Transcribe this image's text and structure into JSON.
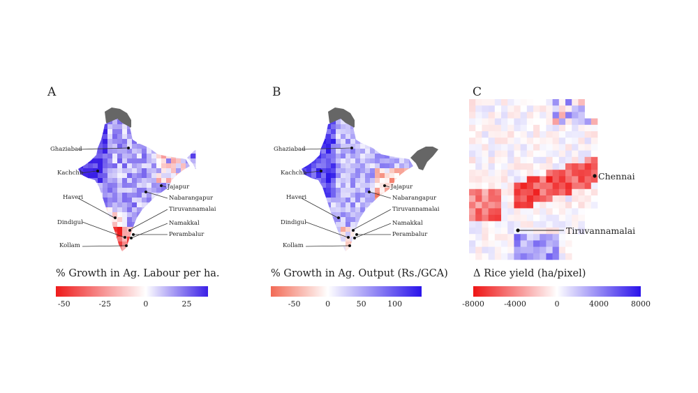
{
  "panels": [
    {
      "letter": "A",
      "colorbar": {
        "title": "% Growth in Ag. Labour per ha.",
        "ticks": [
          "-50",
          "-25",
          "0",
          "25"
        ],
        "tick_values": [
          -50,
          -25,
          0,
          25
        ],
        "range": [
          -55,
          38
        ],
        "colors": [
          "#ee1b1b",
          "#ffffff",
          "#3a1fe6"
        ]
      },
      "districts": [
        "Ghaziabad",
        "Kachchh",
        "Haveri",
        "Dindigul",
        "Kollam",
        "Jajapur",
        "Nabarangapur",
        "Tiruvannamalai",
        "Namakkal",
        "Perambalur"
      ]
    },
    {
      "letter": "B",
      "colorbar": {
        "title": "% Growth in Ag. Output (Rs./GCA)",
        "ticks": [
          "-50",
          "0",
          "50",
          "100"
        ],
        "tick_values": [
          -50,
          0,
          50,
          100
        ],
        "range": [
          -85,
          140
        ],
        "colors": [
          "#f26a55",
          "#ffffff",
          "#2a14ea"
        ]
      },
      "districts": [
        "Ghaziabad",
        "Kachchh",
        "Haveri",
        "Dindigul",
        "Kollam",
        "Jajapur",
        "Nabarangapur",
        "Tiruvannamalai",
        "Namakkal",
        "Perambalur"
      ]
    },
    {
      "letter": "C",
      "colorbar": {
        "title": "Δ Rice yield (ha/pixel)",
        "ticks": [
          "-8000",
          "-4000",
          "0",
          "4000",
          "8000"
        ],
        "tick_values": [
          -8000,
          -4000,
          0,
          4000,
          8000
        ],
        "range": [
          -8000,
          8000
        ],
        "colors": [
          "#ee1515",
          "#ffffff",
          "#2a12ea"
        ]
      },
      "places": [
        "Chennai",
        "Tiruvannamalai"
      ]
    }
  ],
  "chart_data": [
    {
      "type": "heatmap",
      "title": "A",
      "legend_title": "% Growth in Ag. Labour per ha.",
      "color_range": [
        -55,
        38
      ],
      "labeled_districts": [
        "Ghaziabad",
        "Kachchh",
        "Haveri",
        "Dindigul",
        "Kollam",
        "Jajapur",
        "Nabarangapur",
        "Tiruvannamalai",
        "Namakkal",
        "Perambalur"
      ]
    },
    {
      "type": "heatmap",
      "title": "B",
      "legend_title": "% Growth in Ag. Output (Rs./GCA)",
      "color_range": [
        -85,
        140
      ],
      "labeled_districts": [
        "Ghaziabad",
        "Kachchh",
        "Haveri",
        "Dindigul",
        "Kollam",
        "Jajapur",
        "Nabarangapur",
        "Tiruvannamalai",
        "Namakkal",
        "Perambalur"
      ]
    },
    {
      "type": "heatmap",
      "title": "C",
      "legend_title": "Δ Rice yield (ha/pixel)",
      "color_range": [
        -8000,
        8000
      ],
      "labeled_places": [
        "Chennai",
        "Tiruvannamalai"
      ]
    }
  ]
}
